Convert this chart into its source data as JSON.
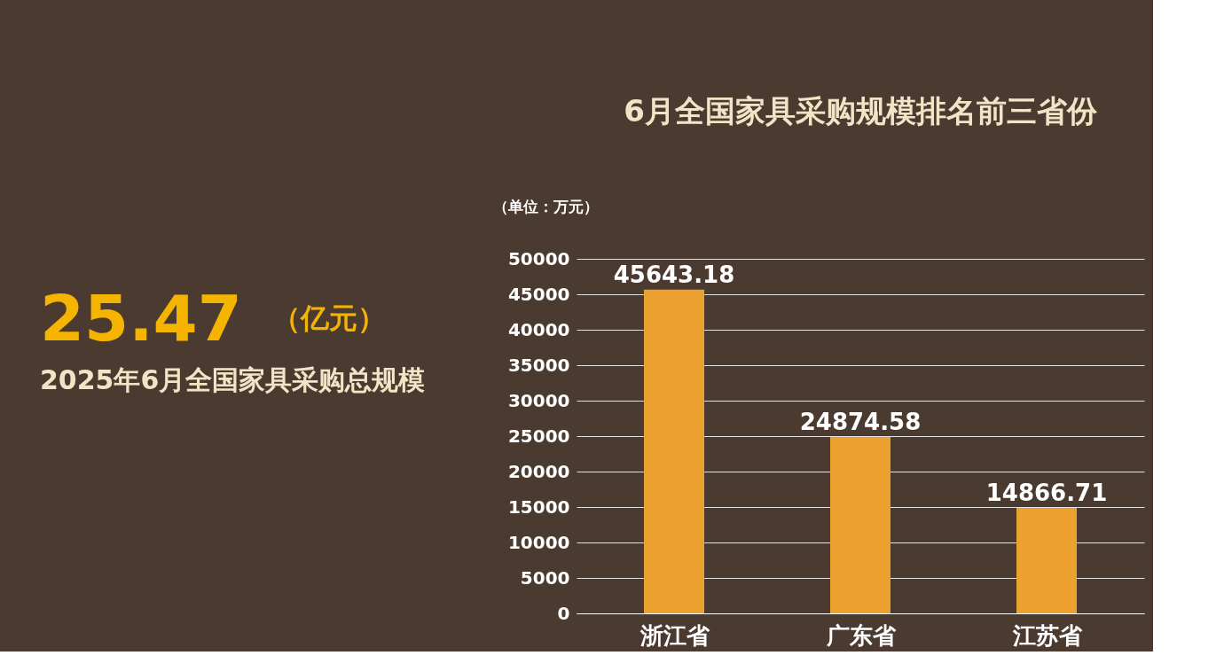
{
  "chart_data": [
    {
      "type": "other",
      "annotations": [
        "25.47",
        "（亿元）",
        "2025年6月全国家具采购总规模"
      ]
    },
    {
      "type": "bar",
      "title": "6月全国家具采购规模排名前三省份",
      "ylabel": "（单位：万元）",
      "categories": [
        "浙江省",
        "广东省",
        "江苏省"
      ],
      "values": [
        45643.18,
        24874.58,
        14866.71
      ],
      "color": "#eca030",
      "ylim": [
        0,
        50000
      ],
      "yticks": [
        0,
        5000,
        10000,
        15000,
        20000,
        25000,
        30000,
        35000,
        40000,
        45000,
        50000
      ],
      "grid": "y",
      "data_labels": true
    }
  ]
}
